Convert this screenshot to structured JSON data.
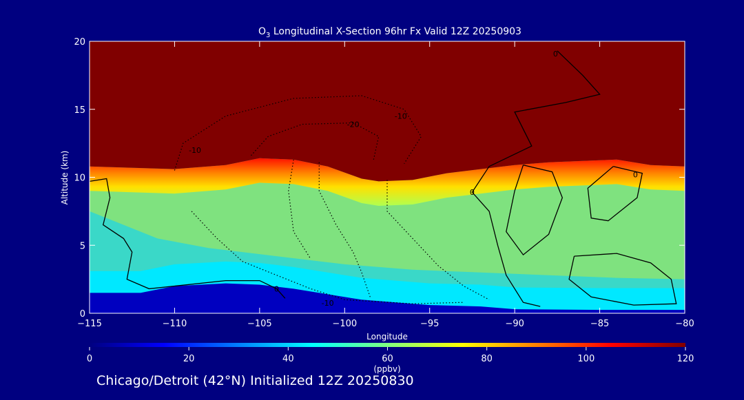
{
  "title": {
    "species": "O",
    "species_sub": "3",
    "rest": " Longitudinal X-Section 96hr  Fx Valid 12Z 20250903"
  },
  "footer": "Chicago/Detroit (42°N) Initialized 12Z 20250830",
  "chart_data": {
    "type": "heatmap",
    "xlabel": "Longitude",
    "ylabel": "Altitude (km)",
    "xlim": [
      -115,
      -80
    ],
    "ylim": [
      0,
      20
    ],
    "xticks": [
      -115,
      -110,
      -105,
      -100,
      -95,
      -90,
      -85,
      -80
    ],
    "xtick_labels": [
      "−115",
      "−110",
      "−105",
      "−100",
      "−95",
      "−90",
      "−85",
      "−80"
    ],
    "yticks": [
      0,
      5,
      10,
      15,
      20
    ],
    "ytick_labels": [
      "0",
      "5",
      "10",
      "15",
      "20"
    ],
    "colorbar": {
      "label": "(ppbv)",
      "range": [
        0,
        120
      ],
      "ticks": [
        0,
        20,
        40,
        60,
        80,
        100,
        120
      ],
      "tick_labels": [
        "0",
        "20",
        "40",
        "60",
        "80",
        "100",
        "120"
      ]
    },
    "colormap": [
      "#000080",
      "#0000ff",
      "#0080ff",
      "#00ffff",
      "#80ff80",
      "#ffff00",
      "#ff8000",
      "#ff0000",
      "#800000"
    ],
    "ozone_fields": {
      "tropopause_altitude_km": [
        [
          -115,
          10.8
        ],
        [
          -110,
          10.6
        ],
        [
          -107,
          10.9
        ],
        [
          -105,
          11.4
        ],
        [
          -103,
          11.3
        ],
        [
          -101,
          10.8
        ],
        [
          -99,
          9.9
        ],
        [
          -98,
          9.7
        ],
        [
          -96,
          9.8
        ],
        [
          -94,
          10.3
        ],
        [
          -92,
          10.6
        ],
        [
          -90,
          10.9
        ],
        [
          -88,
          11.1
        ],
        [
          -86,
          11.2
        ],
        [
          -84,
          11.3
        ],
        [
          -82,
          10.9
        ],
        [
          -80,
          10.8
        ]
      ],
      "surface_layer_top_km": [
        [
          -115,
          1.5
        ],
        [
          -112,
          1.5
        ],
        [
          -110,
          2.0
        ],
        [
          -107,
          2.2
        ],
        [
          -105,
          2.1
        ],
        [
          -103,
          1.8
        ],
        [
          -101,
          1.4
        ],
        [
          -99,
          1.0
        ],
        [
          -97,
          0.8
        ],
        [
          -95,
          0.6
        ],
        [
          -92,
          0.5
        ],
        [
          -90,
          0.3
        ],
        [
          -85,
          0.25
        ],
        [
          -80,
          0.25
        ]
      ],
      "mid_troposphere_ppbv": 55,
      "stratosphere_ppbv": 120,
      "boundary_layer_ppbv": 45
    },
    "contour_labels": [
      {
        "text": "-20",
        "lon": -99.5,
        "alt": 13.9
      },
      {
        "text": "-10",
        "lon": -96.7,
        "alt": 14.5
      },
      {
        "text": "-10",
        "lon": -108.8,
        "alt": 12.0
      },
      {
        "text": "-10",
        "lon": -101.0,
        "alt": 0.75
      },
      {
        "text": "0",
        "lon": -82.9,
        "alt": 10.2
      },
      {
        "text": "0",
        "lon": -92.5,
        "alt": 8.9
      },
      {
        "text": "0",
        "lon": -104.0,
        "alt": 1.8
      },
      {
        "text": "0",
        "lon": -87.6,
        "alt": 19.1
      }
    ]
  }
}
